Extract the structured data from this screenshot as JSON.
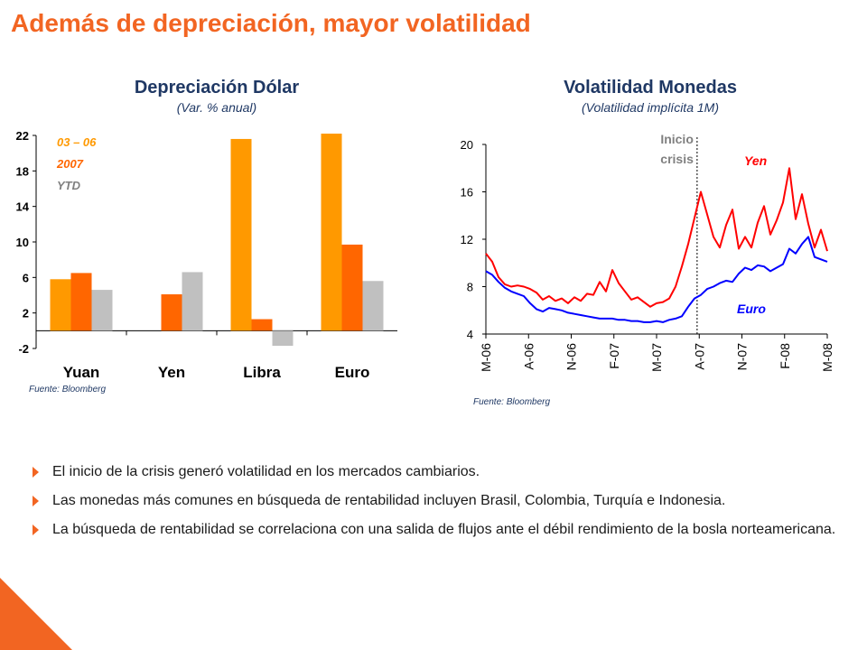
{
  "slide": {
    "title": "Además de depreciación, mayor volatilidad",
    "bullets": [
      "El inicio de la crisis generó volatilidad en los mercados cambiarios.",
      "Las monedas más comunes en búsqueda de rentabilidad incluyen Brasil, Colombia, Turquía e Indonesia.",
      "La búsqueda de rentabilidad se correlaciona con una salida de flujos ante el débil rendimiento de la bosla norteamericana."
    ],
    "accent_color": "#f26522",
    "title_color": "#1f3864"
  },
  "chart_data": [
    {
      "type": "bar",
      "title": "Depreciación Dólar",
      "subtitle": "(Var. % anual)",
      "source": "Fuente: Bloomberg",
      "categories": [
        "Yuan",
        "Yen",
        "Libra",
        "Euro"
      ],
      "yticks": [
        "22",
        "18",
        "14",
        "10",
        "6",
        "2",
        "-2"
      ],
      "ylim": [
        -2,
        22
      ],
      "series": [
        {
          "name": "03 – 06",
          "color": "#ff9900",
          "values": [
            5.8,
            null,
            21.6,
            22.2
          ]
        },
        {
          "name": "2007",
          "color": "#ff6600",
          "values": [
            6.5,
            4.1,
            1.3,
            9.7
          ]
        },
        {
          "name": "YTD",
          "color": "#c0c0c0",
          "values": [
            4.6,
            6.6,
            -1.7,
            5.6
          ]
        }
      ],
      "legend_position": "top-left"
    },
    {
      "type": "line",
      "title": "Volatilidad Monedas",
      "subtitle": "(Volatilidad implícita 1M)",
      "source": "Fuente: Bloomberg",
      "x_ticks": [
        "M-06",
        "A-06",
        "N-06",
        "F-07",
        "M-07",
        "A-07",
        "N-07",
        "F-08",
        "M-08"
      ],
      "yticks": [
        "20",
        "16",
        "12",
        "8",
        "4"
      ],
      "ylim": [
        4,
        20
      ],
      "annotation": {
        "line1": "Inicio",
        "line2": "crisis",
        "x_index": 4.95
      },
      "series": [
        {
          "name": "Yen",
          "color": "#ff0000",
          "values": [
            10.8,
            10.1,
            8.8,
            8.2,
            8.0,
            8.1,
            8.0,
            7.8,
            7.5,
            6.9,
            7.2,
            6.8,
            7.0,
            6.6,
            7.1,
            6.8,
            7.4,
            7.3,
            8.4,
            7.6,
            9.4,
            8.3,
            7.6,
            6.9,
            7.1,
            6.7,
            6.3,
            6.6,
            6.7,
            7.0,
            8.0,
            9.7,
            11.6,
            13.8,
            16.0,
            14.1,
            12.2,
            11.3,
            13.2,
            14.5,
            11.2,
            12.2,
            11.3,
            13.4,
            14.8,
            12.4,
            13.6,
            15.1,
            18.0,
            13.7,
            15.8,
            13.3,
            11.3,
            12.8,
            11.0
          ]
        },
        {
          "name": "Euro",
          "color": "#0000ff",
          "values": [
            9.3,
            9.0,
            8.4,
            7.9,
            7.6,
            7.4,
            7.2,
            6.6,
            6.1,
            5.9,
            6.2,
            6.1,
            6.0,
            5.8,
            5.7,
            5.6,
            5.5,
            5.4,
            5.3,
            5.3,
            5.3,
            5.2,
            5.2,
            5.1,
            5.1,
            5.0,
            5.0,
            5.1,
            5.0,
            5.2,
            5.3,
            5.5,
            6.3,
            7.0,
            7.3,
            7.8,
            8.0,
            8.3,
            8.5,
            8.4,
            9.1,
            9.6,
            9.4,
            9.8,
            9.7,
            9.3,
            9.6,
            9.9,
            11.2,
            10.8,
            11.6,
            12.2,
            10.5,
            10.3,
            10.1
          ]
        }
      ]
    }
  ]
}
